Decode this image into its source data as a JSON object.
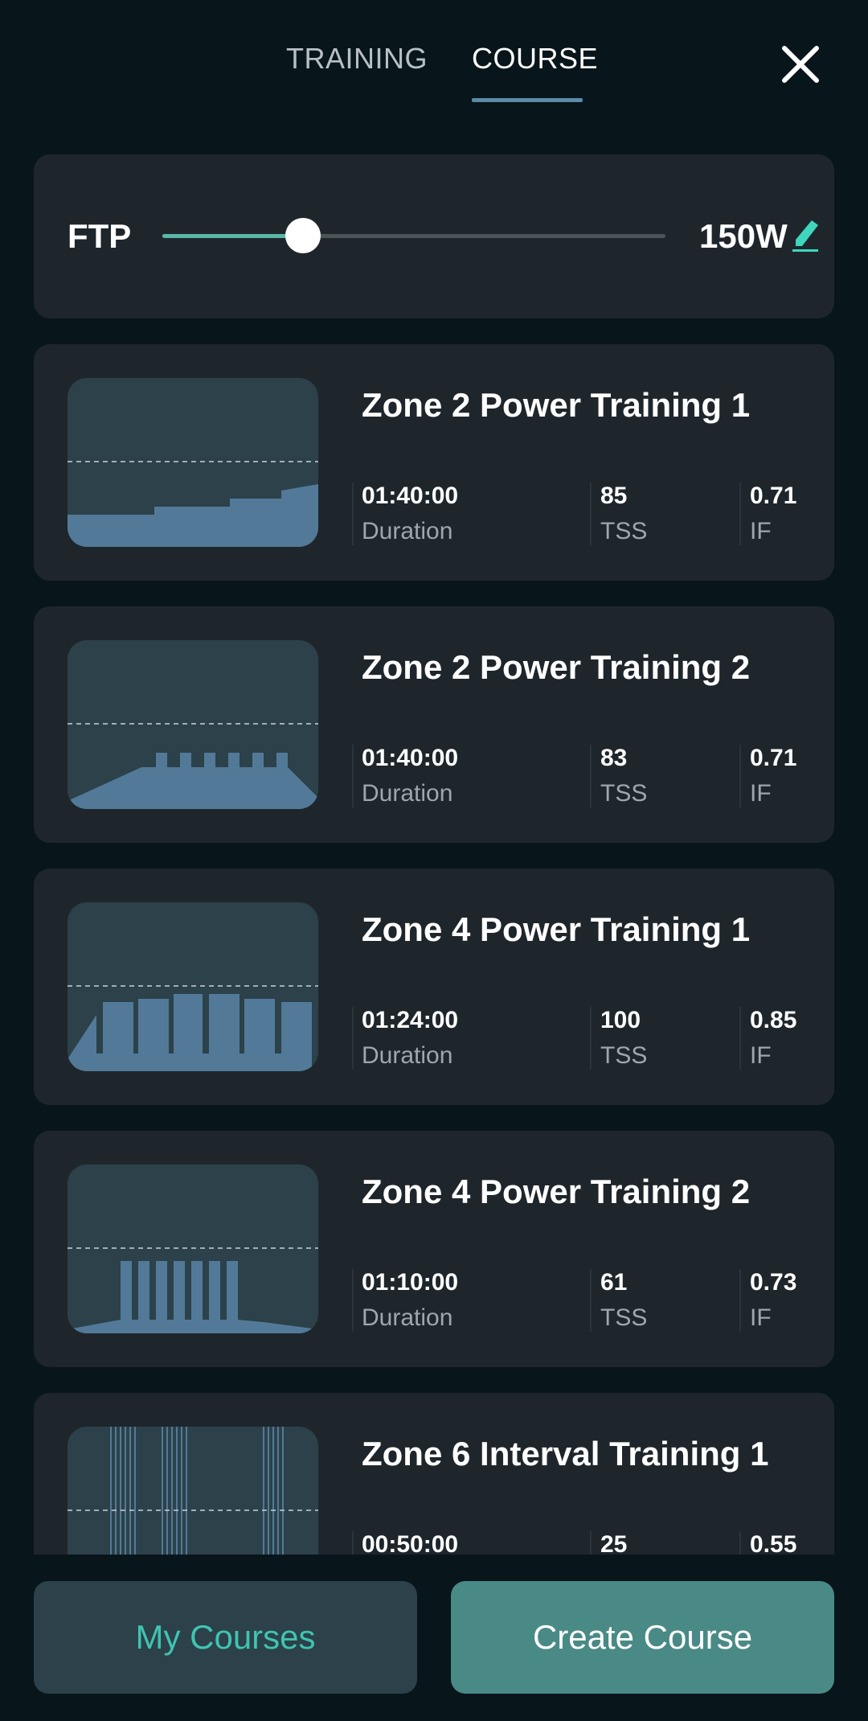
{
  "header": {
    "tabs": [
      {
        "label": "TRAINING",
        "active": false
      },
      {
        "label": "COURSE",
        "active": true
      }
    ],
    "close_icon": "close-icon"
  },
  "ftp": {
    "label": "FTP",
    "value": "150W",
    "slider_fraction": 0.28,
    "edit_icon": "pencil-icon"
  },
  "stat_labels": {
    "duration": "Duration",
    "tss": "TSS",
    "if": "IF"
  },
  "courses": [
    {
      "title": "Zone 2 Power Training 1",
      "duration": "01:40:00",
      "tss": "85",
      "if": "0.71"
    },
    {
      "title": "Zone 2 Power Training 2",
      "duration": "01:40:00",
      "tss": "83",
      "if": "0.71"
    },
    {
      "title": "Zone 4 Power Training 1",
      "duration": "01:24:00",
      "tss": "100",
      "if": "0.85"
    },
    {
      "title": "Zone 4 Power Training 2",
      "duration": "01:10:00",
      "tss": "61",
      "if": "0.73"
    },
    {
      "title": "Zone 6 Interval Training 1",
      "duration": "00:50:00",
      "tss": "25",
      "if": "0.55"
    }
  ],
  "buttons": {
    "my_courses": "My Courses",
    "create_course": "Create Course"
  },
  "colors": {
    "background": "#08151b",
    "card": "#1e262c",
    "accent_teal": "#3fc4b0",
    "profile_fill": "#527a98",
    "create_button": "#4a8a86"
  }
}
